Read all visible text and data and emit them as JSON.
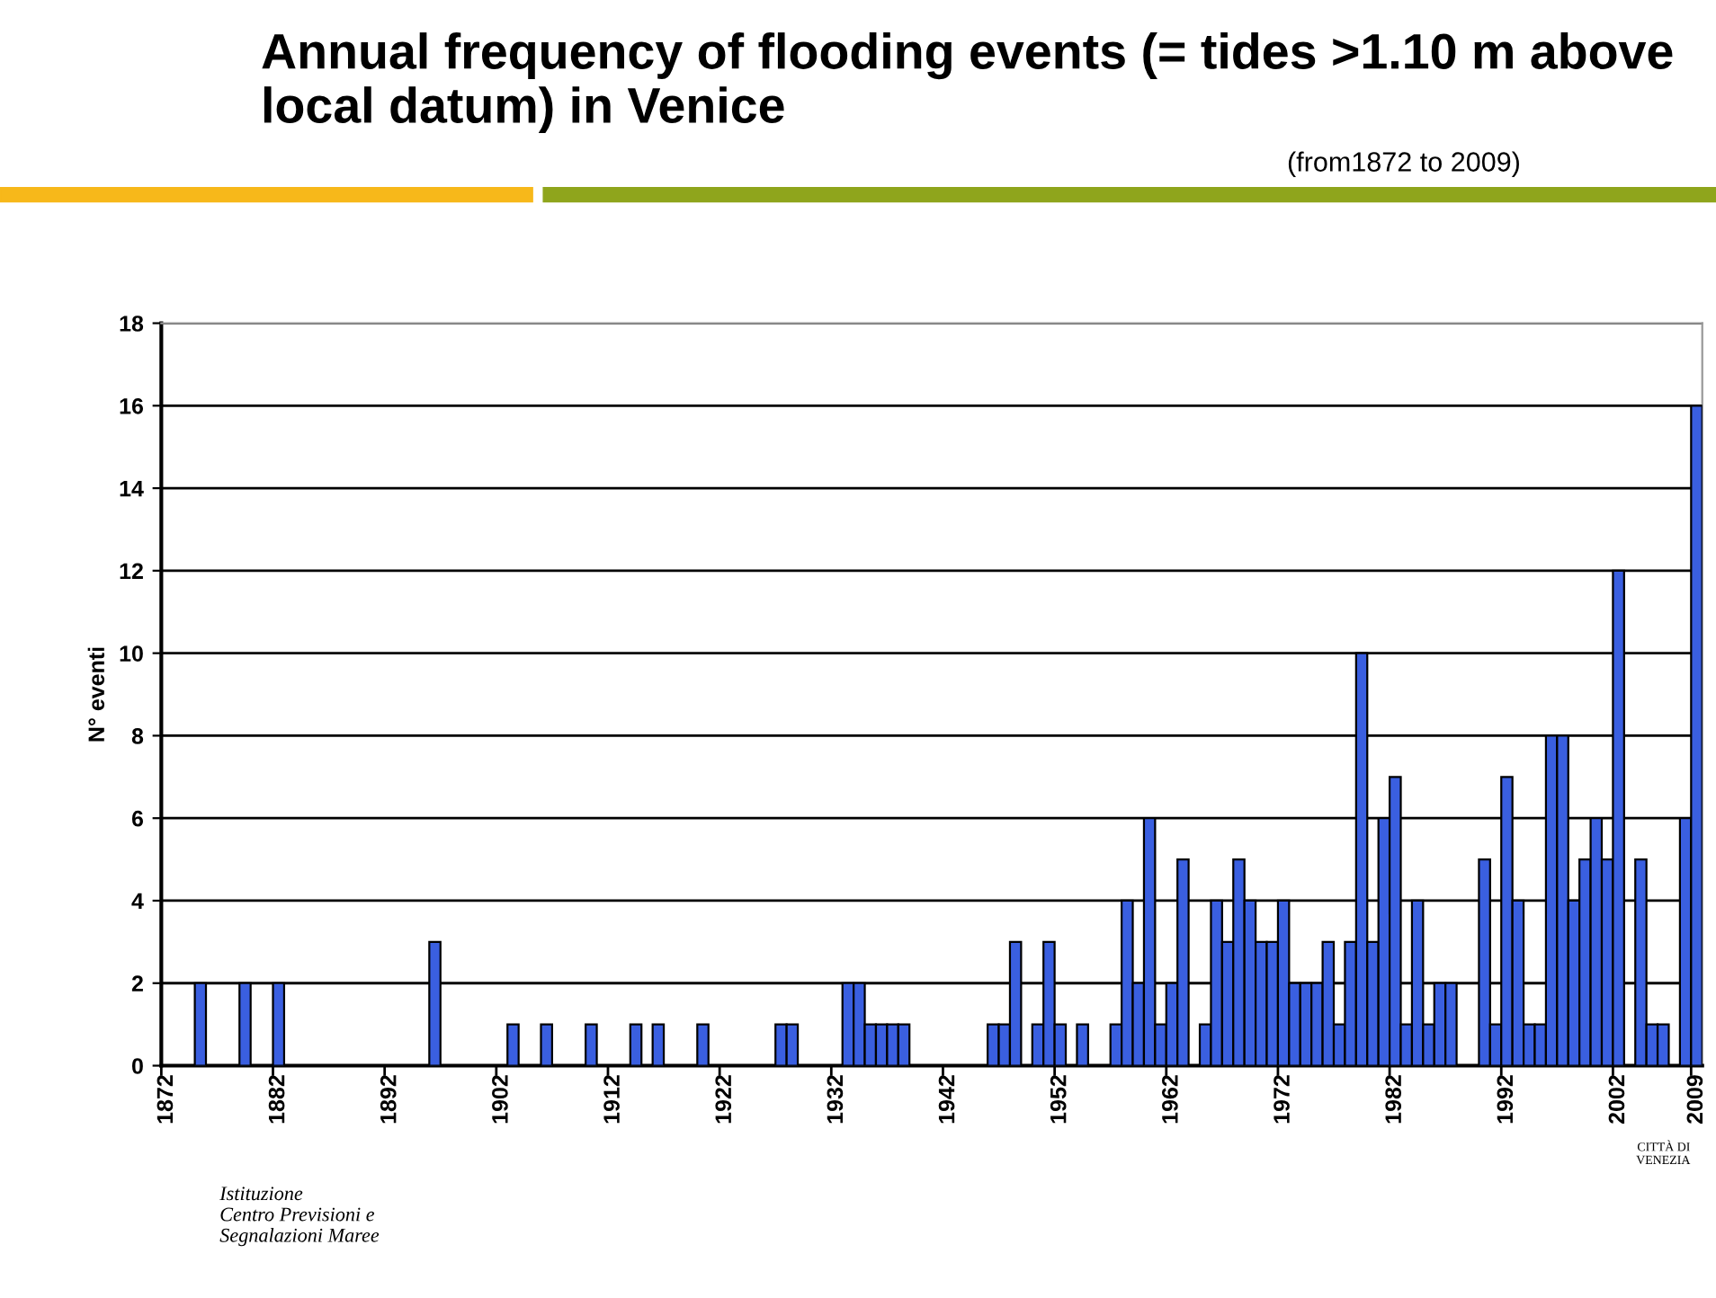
{
  "chart_data": {
    "type": "bar",
    "title": "Annual frequency of flooding events (= tides >1.10 m above local datum) in Venice",
    "subtitle": "(from1872 to 2009)",
    "ylabel": "N° eventi",
    "categories": [
      "1872",
      null,
      null,
      null,
      null,
      null,
      null,
      null,
      null,
      null,
      "1882",
      null,
      null,
      null,
      null,
      null,
      null,
      null,
      null,
      null,
      "1892",
      null,
      null,
      null,
      null,
      null,
      null,
      null,
      null,
      null,
      "1902",
      null,
      null,
      null,
      null,
      null,
      null,
      null,
      null,
      null,
      "1912",
      null,
      null,
      null,
      null,
      null,
      null,
      null,
      null,
      null,
      "1922",
      null,
      null,
      null,
      null,
      null,
      null,
      null,
      null,
      null,
      "1932",
      null,
      null,
      null,
      null,
      null,
      null,
      null,
      null,
      null,
      "1942",
      null,
      null,
      null,
      null,
      null,
      null,
      null,
      null,
      null,
      "1952",
      null,
      null,
      null,
      null,
      null,
      null,
      null,
      null,
      null,
      "1962",
      null,
      null,
      null,
      null,
      null,
      null,
      null,
      null,
      null,
      "1972",
      null,
      null,
      null,
      null,
      null,
      null,
      null,
      null,
      null,
      "1982",
      null,
      null,
      null,
      null,
      null,
      null,
      null,
      null,
      null,
      "1992",
      null,
      null,
      null,
      null,
      null,
      null,
      null,
      null,
      null,
      "2002",
      null,
      null,
      null,
      null,
      null,
      null,
      "2009"
    ],
    "values": [
      0,
      0,
      0,
      2,
      0,
      0,
      0,
      2,
      0,
      0,
      2,
      0,
      0,
      0,
      0,
      0,
      0,
      0,
      0,
      0,
      0,
      0,
      0,
      0,
      3,
      0,
      0,
      0,
      0,
      0,
      0,
      1,
      0,
      0,
      1,
      0,
      0,
      0,
      1,
      0,
      0,
      0,
      1,
      0,
      1,
      0,
      0,
      0,
      1,
      0,
      0,
      0,
      0,
      0,
      0,
      1,
      1,
      0,
      0,
      0,
      0,
      2,
      2,
      1,
      1,
      1,
      1,
      0,
      0,
      0,
      0,
      0,
      0,
      0,
      1,
      1,
      3,
      0,
      1,
      3,
      1,
      0,
      1,
      0,
      0,
      1,
      4,
      2,
      6,
      1,
      2,
      5,
      0,
      1,
      4,
      3,
      5,
      4,
      3,
      3,
      4,
      2,
      2,
      2,
      3,
      1,
      3,
      10,
      3,
      6,
      7,
      1,
      4,
      1,
      2,
      2,
      0,
      0,
      5,
      1,
      7,
      4,
      1,
      1,
      8,
      8,
      4,
      5,
      6,
      5,
      12,
      0,
      5,
      1,
      1,
      0,
      6,
      16
    ],
    "color": "#3a5fe0",
    "ylim": [
      0,
      18
    ],
    "yticks": [
      0,
      2,
      4,
      6,
      8,
      10,
      12,
      14,
      16,
      18
    ],
    "grid": "y",
    "annotations": [
      "Istituzione\nCentro Previsioni e\nSegnalazioni Maree",
      "CITTÀ DI\nVENEZIA"
    ]
  }
}
